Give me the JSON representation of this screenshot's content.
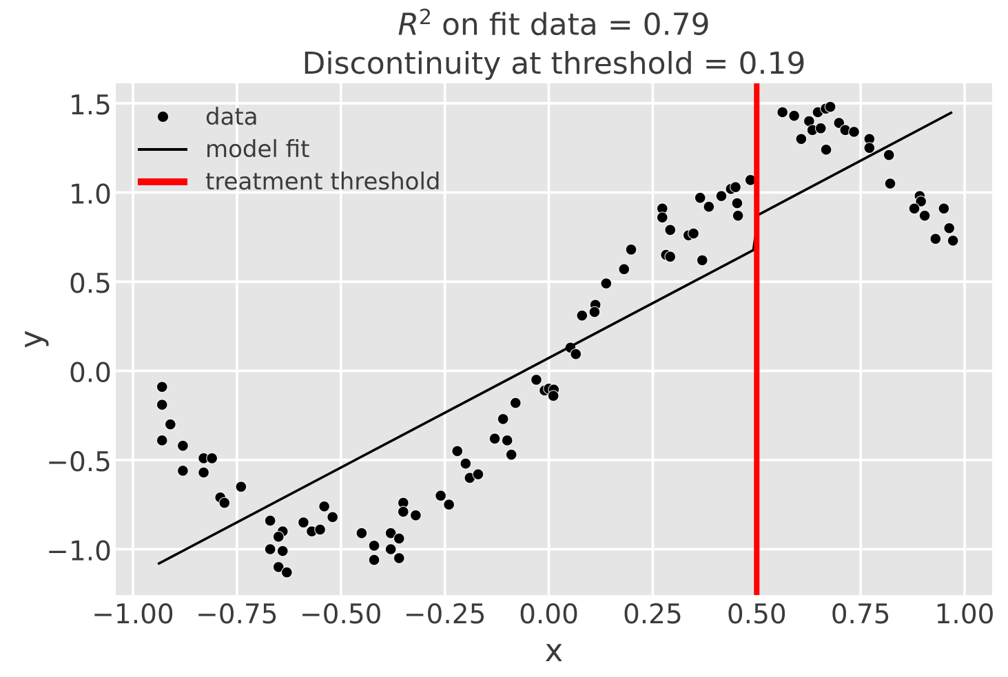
{
  "title": {
    "line1_var": "R",
    "line1_sup": "2",
    "line1_rest": " on fit data = 0.79",
    "line2": "Discontinuity at threshold = 0.19"
  },
  "axes": {
    "xlabel": "x",
    "ylabel": "y",
    "xticks": [
      -1.0,
      -0.75,
      -0.5,
      -0.25,
      0.0,
      0.25,
      0.5,
      0.75,
      1.0
    ],
    "xtick_labels": [
      "−1.00",
      "−0.75",
      "−0.50",
      "−0.25",
      "0.00",
      "0.25",
      "0.50",
      "0.75",
      "1.00"
    ],
    "yticks": [
      -1.0,
      -0.5,
      0.0,
      0.5,
      1.0,
      1.5
    ],
    "ytick_labels": [
      "−1.0",
      "−0.5",
      "0.0",
      "0.5",
      "1.0",
      "1.5"
    ],
    "xlim": [
      -1.0414,
      1.0662
    ],
    "ylim": [
      -1.257,
      1.612
    ],
    "grid": true,
    "background_color": "#e5e5e5",
    "grid_color": "#ffffff",
    "text_color": "#3b3b3b"
  },
  "legend": {
    "position": "upper left",
    "items": [
      {
        "label": "data",
        "marker": "dot",
        "color": "#000000"
      },
      {
        "label": "model fit",
        "marker": "line",
        "color": "#000000"
      },
      {
        "label": "treatment threshold",
        "marker": "thick-line",
        "color": "#ff0000"
      }
    ]
  },
  "chart_data": {
    "type": "scatter",
    "title": "R^2 on fit data = 0.79\nDiscontinuity at threshold = 0.19",
    "xlabel": "x",
    "ylabel": "y",
    "point_color": "#000000",
    "fit_line_color": "#000000",
    "threshold_color": "#ff0000",
    "threshold_x": 0.5,
    "fit_line_segments": [
      [
        [
          -0.94,
          -1.083
        ],
        [
          0.492,
          0.677
        ],
        [
          0.504,
          0.875
        ],
        [
          0.97,
          1.45
        ]
      ]
    ],
    "points": [
      [
        -0.93,
        -0.09
      ],
      [
        -0.93,
        -0.19
      ],
      [
        -0.91,
        -0.3
      ],
      [
        -0.93,
        -0.39
      ],
      [
        -0.88,
        -0.42
      ],
      [
        -0.83,
        -0.49
      ],
      [
        -0.81,
        -0.49
      ],
      [
        -0.88,
        -0.56
      ],
      [
        -0.83,
        -0.57
      ],
      [
        -0.74,
        -0.65
      ],
      [
        -0.79,
        -0.71
      ],
      [
        -0.78,
        -0.74
      ],
      [
        -0.67,
        -0.84
      ],
      [
        -0.64,
        -0.9
      ],
      [
        -0.65,
        -0.93
      ],
      [
        -0.59,
        -0.85
      ],
      [
        -0.57,
        -0.9
      ],
      [
        -0.55,
        -0.89
      ],
      [
        -0.67,
        -1.0
      ],
      [
        -0.64,
        -1.01
      ],
      [
        -0.65,
        -1.1
      ],
      [
        -0.63,
        -1.13
      ],
      [
        -0.54,
        -0.76
      ],
      [
        -0.52,
        -0.82
      ],
      [
        -0.45,
        -0.91
      ],
      [
        -0.42,
        -0.98
      ],
      [
        -0.42,
        -1.06
      ],
      [
        -0.38,
        -0.91
      ],
      [
        -0.36,
        -0.94
      ],
      [
        -0.38,
        -1.0
      ],
      [
        -0.36,
        -1.05
      ],
      [
        -0.35,
        -0.74
      ],
      [
        -0.35,
        -0.79
      ],
      [
        -0.32,
        -0.81
      ],
      [
        -0.26,
        -0.7
      ],
      [
        -0.24,
        -0.75
      ],
      [
        -0.22,
        -0.45
      ],
      [
        -0.2,
        -0.52
      ],
      [
        -0.19,
        -0.6
      ],
      [
        -0.17,
        -0.58
      ],
      [
        -0.13,
        -0.38
      ],
      [
        -0.11,
        -0.27
      ],
      [
        -0.1,
        -0.39
      ],
      [
        -0.09,
        -0.47
      ],
      [
        -0.08,
        -0.18
      ],
      [
        -0.03,
        -0.05
      ],
      [
        -0.01,
        -0.11
      ],
      [
        0.0,
        -0.1
      ],
      [
        0.012,
        -0.105
      ],
      [
        0.011,
        -0.14
      ],
      [
        0.052,
        0.13
      ],
      [
        0.065,
        0.094
      ],
      [
        0.08,
        0.31
      ],
      [
        0.112,
        0.37
      ],
      [
        0.11,
        0.33
      ],
      [
        0.138,
        0.49
      ],
      [
        0.181,
        0.57
      ],
      [
        0.198,
        0.68
      ],
      [
        0.273,
        0.91
      ],
      [
        0.273,
        0.86
      ],
      [
        0.292,
        0.79
      ],
      [
        0.282,
        0.65
      ],
      [
        0.292,
        0.64
      ],
      [
        0.336,
        0.76
      ],
      [
        0.348,
        0.77
      ],
      [
        0.369,
        0.62
      ],
      [
        0.364,
        0.97
      ],
      [
        0.385,
        0.92
      ],
      [
        0.415,
        0.98
      ],
      [
        0.438,
        1.02
      ],
      [
        0.449,
        1.03
      ],
      [
        0.453,
        0.94
      ],
      [
        0.455,
        0.87
      ],
      [
        0.485,
        1.07
      ],
      [
        0.562,
        1.45
      ],
      [
        0.59,
        1.43
      ],
      [
        0.626,
        1.4
      ],
      [
        0.647,
        1.45
      ],
      [
        0.666,
        1.47
      ],
      [
        0.677,
        1.48
      ],
      [
        0.634,
        1.35
      ],
      [
        0.654,
        1.36
      ],
      [
        0.698,
        1.39
      ],
      [
        0.713,
        1.35
      ],
      [
        0.734,
        1.34
      ],
      [
        0.607,
        1.3
      ],
      [
        0.667,
        1.24
      ],
      [
        0.771,
        1.3
      ],
      [
        0.771,
        1.25
      ],
      [
        0.818,
        1.21
      ],
      [
        0.821,
        1.05
      ],
      [
        0.892,
        0.98
      ],
      [
        0.895,
        0.95
      ],
      [
        0.879,
        0.91
      ],
      [
        0.904,
        0.87
      ],
      [
        0.95,
        0.91
      ],
      [
        0.963,
        0.8
      ],
      [
        0.93,
        0.74
      ],
      [
        0.972,
        0.73
      ]
    ]
  }
}
